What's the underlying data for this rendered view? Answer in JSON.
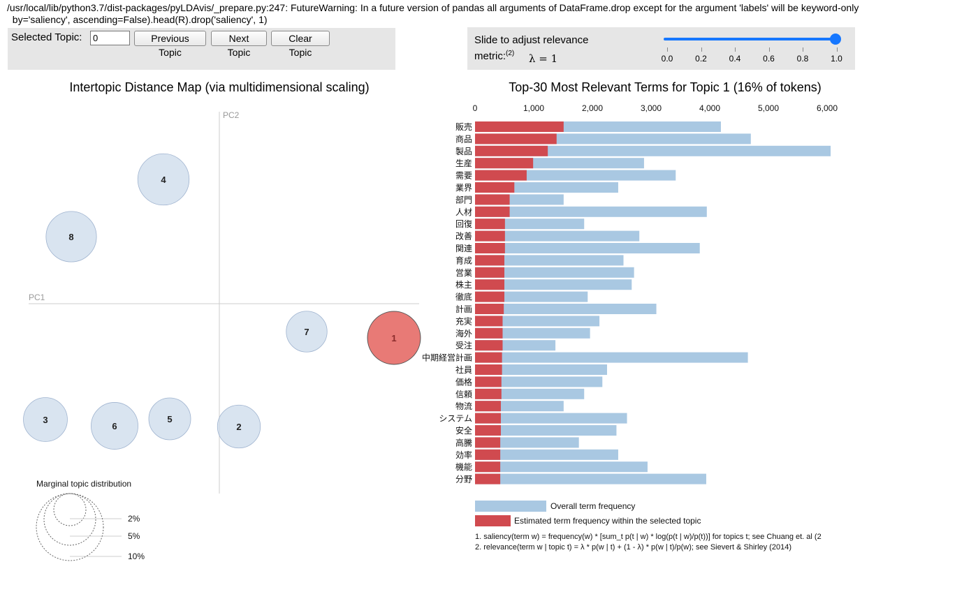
{
  "warning": {
    "line1": "/usr/local/lib/python3.7/dist-packages/pyLDAvis/_prepare.py:247: FutureWarning: In a future version of pandas all arguments of DataFrame.drop except for the argument 'labels' will be keyword-only",
    "line2": "  by='saliency', ascending=False).head(R).drop('saliency', 1)"
  },
  "controls": {
    "selected_topic_label": "Selected Topic:",
    "selected_topic_value": "0",
    "previous_label": "Previous Topic",
    "next_label": "Next Topic",
    "clear_label": "Clear Topic"
  },
  "slider": {
    "label_text": "Slide to adjust relevance metric:",
    "label_sup": "(2)",
    "lambda_text": "λ = 1",
    "value": 1,
    "ticks": [
      "0.0",
      "0.2",
      "0.4",
      "0.6",
      "0.8",
      "1.0"
    ]
  },
  "colors": {
    "overall": "#a9c8e2",
    "estimated": "#d04a4f",
    "bubble": "#c9d8ea",
    "selected_bubble": "#e87a76",
    "slider": "#1677ff"
  },
  "chart_data": [
    {
      "type": "scatter",
      "title": "Intertopic Distance Map (via multidimensional scaling)",
      "xlabel": "PC1",
      "ylabel": "PC2",
      "selected": "1",
      "topics": [
        {
          "label": "1",
          "x": 0.25,
          "y": -0.049,
          "share": 16
        },
        {
          "label": "2",
          "x": 0.028,
          "y": -0.176,
          "share": 10.5
        },
        {
          "label": "3",
          "x": -0.249,
          "y": -0.166,
          "share": 11
        },
        {
          "label": "4",
          "x": -0.08,
          "y": 0.178,
          "share": 15
        },
        {
          "label": "5",
          "x": -0.071,
          "y": -0.165,
          "share": 10
        },
        {
          "label": "6",
          "x": -0.15,
          "y": -0.175,
          "share": 12.5
        },
        {
          "label": "7",
          "x": 0.125,
          "y": -0.04,
          "share": 9.5
        },
        {
          "label": "8",
          "x": -0.212,
          "y": 0.096,
          "share": 14.5
        }
      ],
      "marginal": {
        "title": "Marginal topic distribution",
        "labels": [
          "2%",
          "5%",
          "10%"
        ]
      }
    },
    {
      "type": "bar",
      "title": "Top-30 Most Relevant Terms for Topic 1 (16% of tokens)",
      "xlim": [
        0,
        6000
      ],
      "ticks": [
        "0",
        "1,000",
        "2,000",
        "3,000",
        "4,000",
        "5,000",
        "6,000"
      ],
      "terms": [
        "販売",
        "商品",
        "製品",
        "生産",
        "需要",
        "業界",
        "部門",
        "人材",
        "回復",
        "改善",
        "関連",
        "育成",
        "営業",
        "株主",
        "徹底",
        "計画",
        "充実",
        "海外",
        "受注",
        "中期経営計画",
        "社員",
        "価格",
        "信頼",
        "物流",
        "システム",
        "安全",
        "高騰",
        "効率",
        "機能",
        "分野"
      ],
      "series": [
        {
          "name": "Overall term frequency",
          "values": [
            4190,
            4700,
            6060,
            2880,
            3420,
            2440,
            1510,
            3950,
            1860,
            2800,
            3830,
            2530,
            2710,
            2670,
            1920,
            3090,
            2120,
            1960,
            1370,
            4650,
            2250,
            2170,
            1860,
            1510,
            2590,
            2410,
            1770,
            2440,
            2940,
            3940
          ]
        },
        {
          "name": "Estimated term frequency within the selected topic",
          "values": [
            1510,
            1390,
            1240,
            990,
            880,
            670,
            590,
            590,
            510,
            510,
            510,
            500,
            500,
            500,
            500,
            490,
            470,
            470,
            470,
            460,
            460,
            450,
            450,
            440,
            440,
            440,
            430,
            430,
            430,
            430
          ]
        }
      ],
      "footnotes": [
        "1. saliency(term w) = frequency(w) * [sum_t p(t | w) * log(p(t | w)/p(t))] for topics t; see Chuang et. al (2",
        "2. relevance(term w | topic t) = λ * p(w | t) + (1 - λ) * p(w | t)/p(w); see Sievert & Shirley (2014)"
      ]
    }
  ]
}
